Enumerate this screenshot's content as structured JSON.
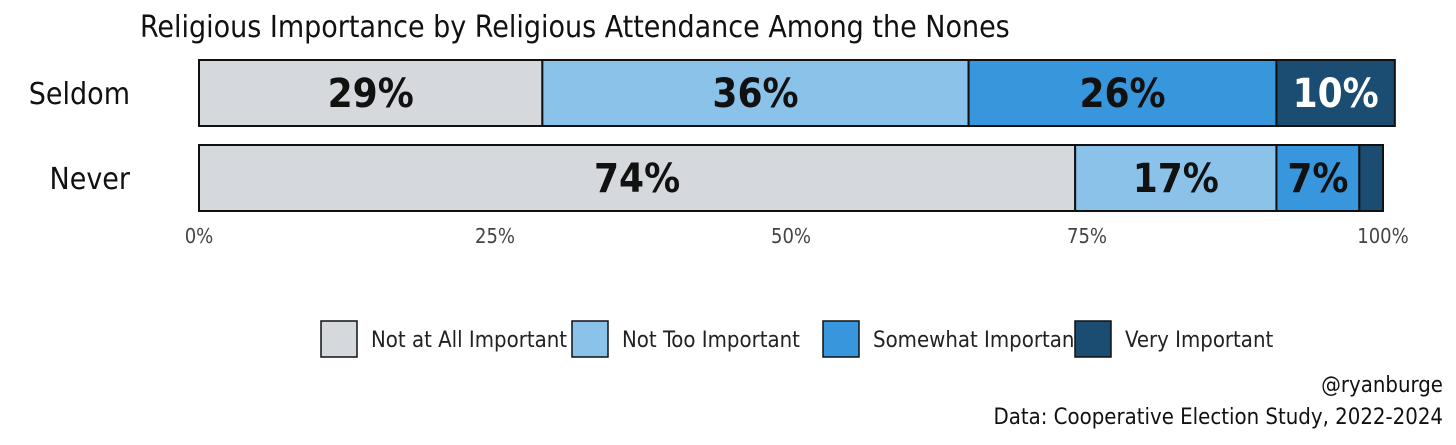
{
  "chart_data": {
    "type": "bar",
    "orientation": "horizontal",
    "stacked": true,
    "title": "Religious Importance by Religious Attendance Among the Nones",
    "categories": [
      "Seldom",
      "Never"
    ],
    "series": [
      {
        "name": "Not at All Important",
        "color": "#d5d8dd",
        "values": [
          29,
          74
        ],
        "labels": [
          "29%",
          "74%"
        ]
      },
      {
        "name": "Not Too Important",
        "color": "#8ac2ea",
        "values": [
          36,
          17
        ],
        "labels": [
          "36%",
          "17%"
        ]
      },
      {
        "name": "Somewhat Important",
        "color": "#3897dc",
        "values": [
          26,
          7
        ],
        "labels": [
          "26%",
          "7%"
        ]
      },
      {
        "name": "Very Important",
        "color": "#1b4c72",
        "values": [
          10,
          2
        ],
        "labels": [
          "10%",
          ""
        ]
      }
    ],
    "xlim": [
      0,
      100
    ],
    "xticks": [
      "0%",
      "25%",
      "50%",
      "75%",
      "100%"
    ],
    "legend_position": "bottom",
    "grid": false
  },
  "caption": {
    "handle": "@ryanburge",
    "source": "Data: Cooperative Election Study, 2022-2024"
  }
}
